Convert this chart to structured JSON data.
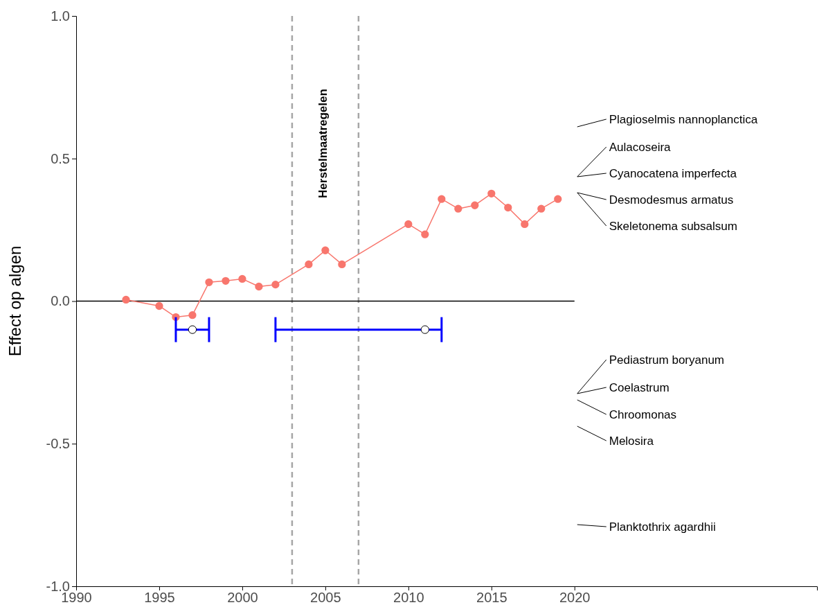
{
  "chart_data": {
    "type": "line",
    "ylabel": "Effect op algen",
    "xlim": [
      1990,
      2034.6
    ],
    "xticks": [
      1990,
      1995,
      2000,
      2005,
      2010,
      2015,
      2020
    ],
    "ylim": [
      -1,
      1
    ],
    "yticks": [
      {
        "value": -1,
        "label": "-1.0"
      },
      {
        "value": -0.5,
        "label": "-0.5"
      },
      {
        "value": 0,
        "label": "0.0"
      },
      {
        "value": 0.5,
        "label": "0.5"
      },
      {
        "value": 1,
        "label": "1.0"
      }
    ],
    "grid": false,
    "marker": "circle",
    "line_style": "solid",
    "series": [
      {
        "color": "#f8766d",
        "x": [
          1993,
          1995,
          1996,
          1997,
          1998,
          1999,
          2000,
          2001,
          2002,
          2004,
          2005,
          2006,
          2010,
          2011,
          2012,
          2013,
          2014,
          2015,
          2016,
          2017,
          2018,
          2019
        ],
        "values": [
          0.005,
          -0.017,
          -0.056,
          -0.049,
          0.066,
          0.071,
          0.078,
          0.051,
          0.058,
          0.129,
          0.178,
          0.129,
          0.27,
          0.234,
          0.358,
          0.324,
          0.336,
          0.377,
          0.328,
          0.27,
          0.324,
          0.358
        ]
      },
      {
        "type": "scatter",
        "color": "#ffffff",
        "x": [
          1997,
          2011
        ],
        "values": [
          -0.1,
          -0.1
        ],
        "xerrors": [
          [
            1996,
            1998
          ],
          [
            2002,
            2012
          ]
        ]
      }
    ],
    "ref_lines": [
      {
        "axis": "x",
        "value": 2003,
        "color": "#a6a6a6",
        "line_style": "dashed"
      },
      {
        "axis": "x",
        "value": 2007,
        "color": "#a6a6a6",
        "line_style": "dashed"
      },
      {
        "axis": "y",
        "value": 0,
        "color": "#000000",
        "line_style": "solid"
      }
    ],
    "annotations": [
      "Herstelmaatregelen",
      "Plagioselmis nannoplanctica",
      "Aulacoseira",
      "Cyanocatena imperfecta",
      "Desmodesmus armatus",
      "Skeletonema subsalsum",
      "Pediastrum boryanum",
      "Coelastrum",
      "Chroomonas",
      "Melosira",
      "Planktothrix agardhii"
    ]
  }
}
